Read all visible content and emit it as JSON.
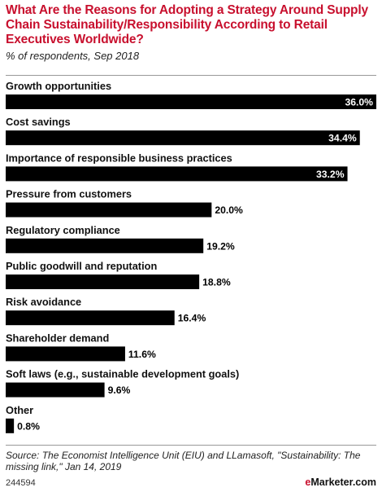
{
  "header": {
    "title": "What Are the Reasons for Adopting a Strategy Around Supply Chain Sustainability/Responsibility According to Retail Executives Worldwide?",
    "subtitle": "% of respondents, Sep 2018"
  },
  "chart_data": {
    "type": "bar",
    "orientation": "horizontal",
    "title": "What Are the Reasons for Adopting a Strategy Around Supply Chain Sustainability/Responsibility According to Retail Executives Worldwide?",
    "subtitle": "% of respondents, Sep 2018",
    "categories": [
      "Growth opportunities",
      "Cost savings",
      "Importance of responsible business practices",
      "Pressure from customers",
      "Regulatory compliance",
      "Public goodwill and reputation",
      "Risk avoidance",
      "Shareholder demand",
      "Soft laws (e.g., sustainable development goals)",
      "Other"
    ],
    "values": [
      36.0,
      34.4,
      33.2,
      20.0,
      19.2,
      18.8,
      16.4,
      11.6,
      9.6,
      0.8
    ],
    "value_labels": [
      "36.0%",
      "34.4%",
      "33.2%",
      "20.0%",
      "19.2%",
      "18.8%",
      "16.4%",
      "11.6%",
      "9.6%",
      "0.8%"
    ],
    "xlim": [
      0,
      36
    ],
    "grid": false,
    "legend": "none",
    "bar_color": "#000000"
  },
  "footer": {
    "source": "Source: The Economist Intelligence Unit (EIU) and LLamasoft, \"Sustainability: The missing link,\" Jan 14, 2019",
    "chart_id": "244594",
    "brand_prefix": "e",
    "brand_name": "Marketer",
    "brand_suffix": ".com"
  },
  "colors": {
    "title": "#c8102e",
    "bar": "#000000",
    "inside_label": "#ffffff",
    "outside_label": "#000000"
  }
}
